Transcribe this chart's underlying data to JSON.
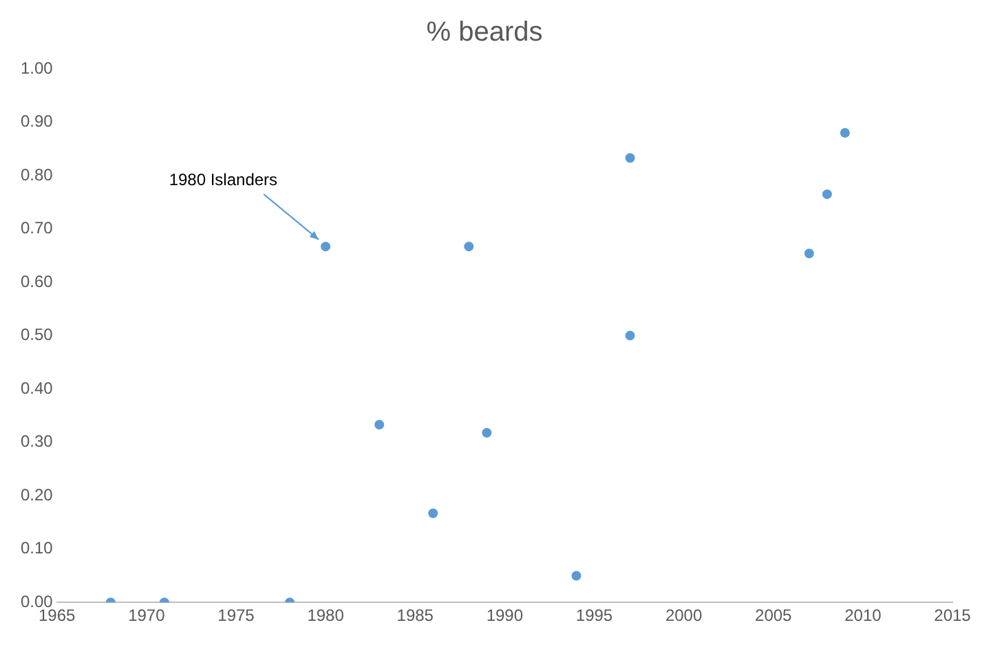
{
  "chart_data": {
    "type": "scatter",
    "title": "% beards",
    "x": [
      1968,
      1971,
      1978,
      1980,
      1983,
      1986,
      1988,
      1989,
      1994,
      1997,
      1997,
      2007,
      2008,
      2009
    ],
    "values": [
      0,
      0,
      0,
      0.667,
      0.333,
      0.167,
      0.667,
      0.318,
      0.05,
      0.833,
      0.5,
      0.654,
      0.765,
      0.88
    ],
    "color": "#5b9bd5",
    "marker": "circle",
    "grid": false,
    "legend": false,
    "xlim": [
      1965,
      2015
    ],
    "xticks": [
      1965,
      1970,
      1975,
      1980,
      1985,
      1990,
      1995,
      2000,
      2005,
      2010,
      2015
    ],
    "ylim": [
      0,
      1
    ],
    "yticks": [
      {
        "value": 0,
        "label": "0.00"
      },
      {
        "value": 0.1,
        "label": "0.10"
      },
      {
        "value": 0.2,
        "label": "0.20"
      },
      {
        "value": 0.3,
        "label": "0.30"
      },
      {
        "value": 0.4,
        "label": "0.40"
      },
      {
        "value": 0.5,
        "label": "0.50"
      },
      {
        "value": 0.6,
        "label": "0.60"
      },
      {
        "value": 0.7,
        "label": "0.70"
      },
      {
        "value": 0.8,
        "label": "0.80"
      },
      {
        "value": 0.9,
        "label": "0.90"
      },
      {
        "value": 1,
        "label": "1.00"
      }
    ],
    "annotations": [
      {
        "text": "1980 Islanders",
        "x": 1980,
        "y": 0.667
      }
    ]
  }
}
